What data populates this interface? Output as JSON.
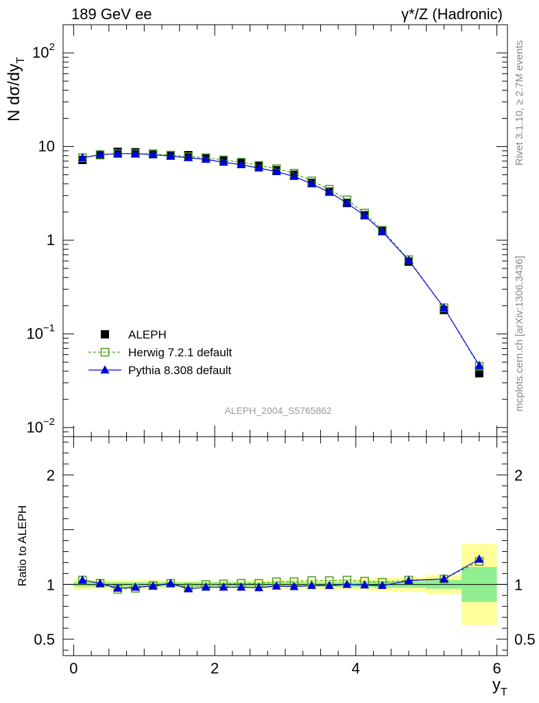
{
  "chart_data": [
    {
      "type": "scatter",
      "panel": "main",
      "title_left": "189 GeV ee",
      "title_right": "γ*/Z (Hadronic)",
      "ylabel": "N dσ/dy",
      "ylabel_sub": "T",
      "xlabel": "y",
      "xlabel_sub": "T",
      "yscale": "log",
      "xlim": [
        -0.15,
        6.15
      ],
      "ylim": [
        0.008,
        200
      ],
      "y_ticks": [
        {
          "v": 0.01,
          "base": "10",
          "exp": "−2"
        },
        {
          "v": 0.1,
          "base": "10",
          "exp": "−1"
        },
        {
          "v": 1,
          "base": "1",
          "exp": ""
        },
        {
          "v": 10,
          "base": "10",
          "exp": ""
        },
        {
          "v": 100,
          "base": "10",
          "exp": "2"
        }
      ],
      "x_ticks": [
        "0",
        "2",
        "4",
        "6"
      ],
      "legend_position": "lower-left",
      "watermark": "ALEPH_2004_S5765862",
      "side_labels": [
        "Rivet 3.1.10, ≥ 2.7M events",
        "mcplots.cern.ch [arXiv:1306.3436]"
      ],
      "series": [
        {
          "name": "ALEPH",
          "style": "data",
          "color": "#000000",
          "x": [
            0.125,
            0.375,
            0.625,
            0.875,
            1.125,
            1.375,
            1.625,
            1.875,
            2.125,
            2.375,
            2.625,
            2.875,
            3.125,
            3.375,
            3.625,
            3.875,
            4.125,
            4.375,
            4.75,
            5.25,
            5.75
          ],
          "y": [
            7.2,
            8.1,
            8.8,
            8.7,
            8.4,
            8.0,
            8.1,
            7.6,
            7.1,
            6.7,
            6.2,
            5.6,
            5.0,
            4.1,
            3.3,
            2.5,
            1.85,
            1.25,
            0.59,
            0.18,
            0.038
          ]
        },
        {
          "name": "Herwig 7.2.1 default",
          "style": "herwig",
          "color": "#4a9a1a",
          "x": [
            0.125,
            0.375,
            0.625,
            0.875,
            1.125,
            1.375,
            1.625,
            1.875,
            2.125,
            2.375,
            2.625,
            2.875,
            3.125,
            3.375,
            3.625,
            3.875,
            4.125,
            4.375,
            4.75,
            5.25,
            5.75
          ],
          "y": [
            7.6,
            8.2,
            8.4,
            8.4,
            8.3,
            8.1,
            7.8,
            7.6,
            7.2,
            6.8,
            6.3,
            5.8,
            5.2,
            4.3,
            3.5,
            2.7,
            1.95,
            1.28,
            0.62,
            0.19,
            0.045
          ]
        },
        {
          "name": "Pythia 8.308 default",
          "style": "pythia",
          "color": "#0000dd",
          "x": [
            0.125,
            0.375,
            0.625,
            0.875,
            1.125,
            1.375,
            1.625,
            1.875,
            2.125,
            2.375,
            2.625,
            2.875,
            3.125,
            3.375,
            3.625,
            3.875,
            4.125,
            4.375,
            4.75,
            5.25,
            5.75
          ],
          "y": [
            7.6,
            8.2,
            8.4,
            8.4,
            8.2,
            7.9,
            7.6,
            7.3,
            6.8,
            6.4,
            5.9,
            5.4,
            4.8,
            4.0,
            3.25,
            2.5,
            1.83,
            1.24,
            0.61,
            0.19,
            0.046
          ]
        }
      ]
    },
    {
      "type": "scatter",
      "panel": "ratio",
      "ylabel": "Ratio to ALEPH",
      "yscale": "linear",
      "xlim": [
        -0.15,
        6.15
      ],
      "ylim": [
        0.35,
        2.35
      ],
      "y_ticks": [
        "0.5",
        "1",
        "2"
      ],
      "band_colors": {
        "inner": "#90ee90",
        "outer": "#ffff99"
      },
      "bands": {
        "edges": [
          0,
          0.25,
          0.5,
          0.75,
          1.0,
          1.25,
          1.5,
          1.75,
          2.0,
          2.25,
          2.5,
          2.75,
          3.0,
          3.25,
          3.5,
          3.75,
          4.0,
          4.25,
          4.5,
          5.0,
          5.5,
          6.0
        ],
        "inner": [
          0.02,
          0.02,
          0.02,
          0.02,
          0.02,
          0.02,
          0.02,
          0.02,
          0.02,
          0.02,
          0.02,
          0.02,
          0.02,
          0.02,
          0.02,
          0.025,
          0.025,
          0.03,
          0.03,
          0.04,
          0.16
        ],
        "outer": [
          0.045,
          0.04,
          0.04,
          0.04,
          0.04,
          0.035,
          0.035,
          0.035,
          0.035,
          0.035,
          0.04,
          0.04,
          0.04,
          0.045,
          0.045,
          0.05,
          0.055,
          0.06,
          0.065,
          0.09,
          0.37
        ]
      },
      "series": [
        {
          "name": "Herwig 7.2.1 default",
          "style": "herwig",
          "color": "#4a9a1a",
          "x": [
            0.125,
            0.375,
            0.625,
            0.875,
            1.125,
            1.375,
            1.625,
            1.875,
            2.125,
            2.375,
            2.625,
            2.875,
            3.125,
            3.375,
            3.625,
            3.875,
            4.125,
            4.375,
            4.75,
            5.25,
            5.75
          ],
          "y": [
            1.04,
            1.01,
            0.955,
            0.965,
            0.99,
            1.01,
            0.97,
            1.0,
            1.005,
            1.01,
            1.01,
            1.025,
            1.025,
            1.035,
            1.035,
            1.04,
            1.03,
            1.02,
            1.04,
            1.05,
            1.21
          ]
        },
        {
          "name": "Pythia 8.308 default",
          "style": "pythia",
          "color": "#0000dd",
          "x": [
            0.125,
            0.375,
            0.625,
            0.875,
            1.125,
            1.375,
            1.625,
            1.875,
            2.125,
            2.375,
            2.625,
            2.875,
            3.125,
            3.375,
            3.625,
            3.875,
            4.125,
            4.375,
            4.75,
            5.25,
            5.75
          ],
          "y": [
            1.04,
            1.01,
            0.965,
            0.975,
            0.985,
            1.01,
            0.96,
            0.975,
            0.975,
            0.975,
            0.97,
            0.985,
            0.98,
            0.99,
            0.99,
            1.0,
            0.995,
            0.99,
            1.035,
            1.05,
            1.23
          ]
        }
      ]
    }
  ]
}
